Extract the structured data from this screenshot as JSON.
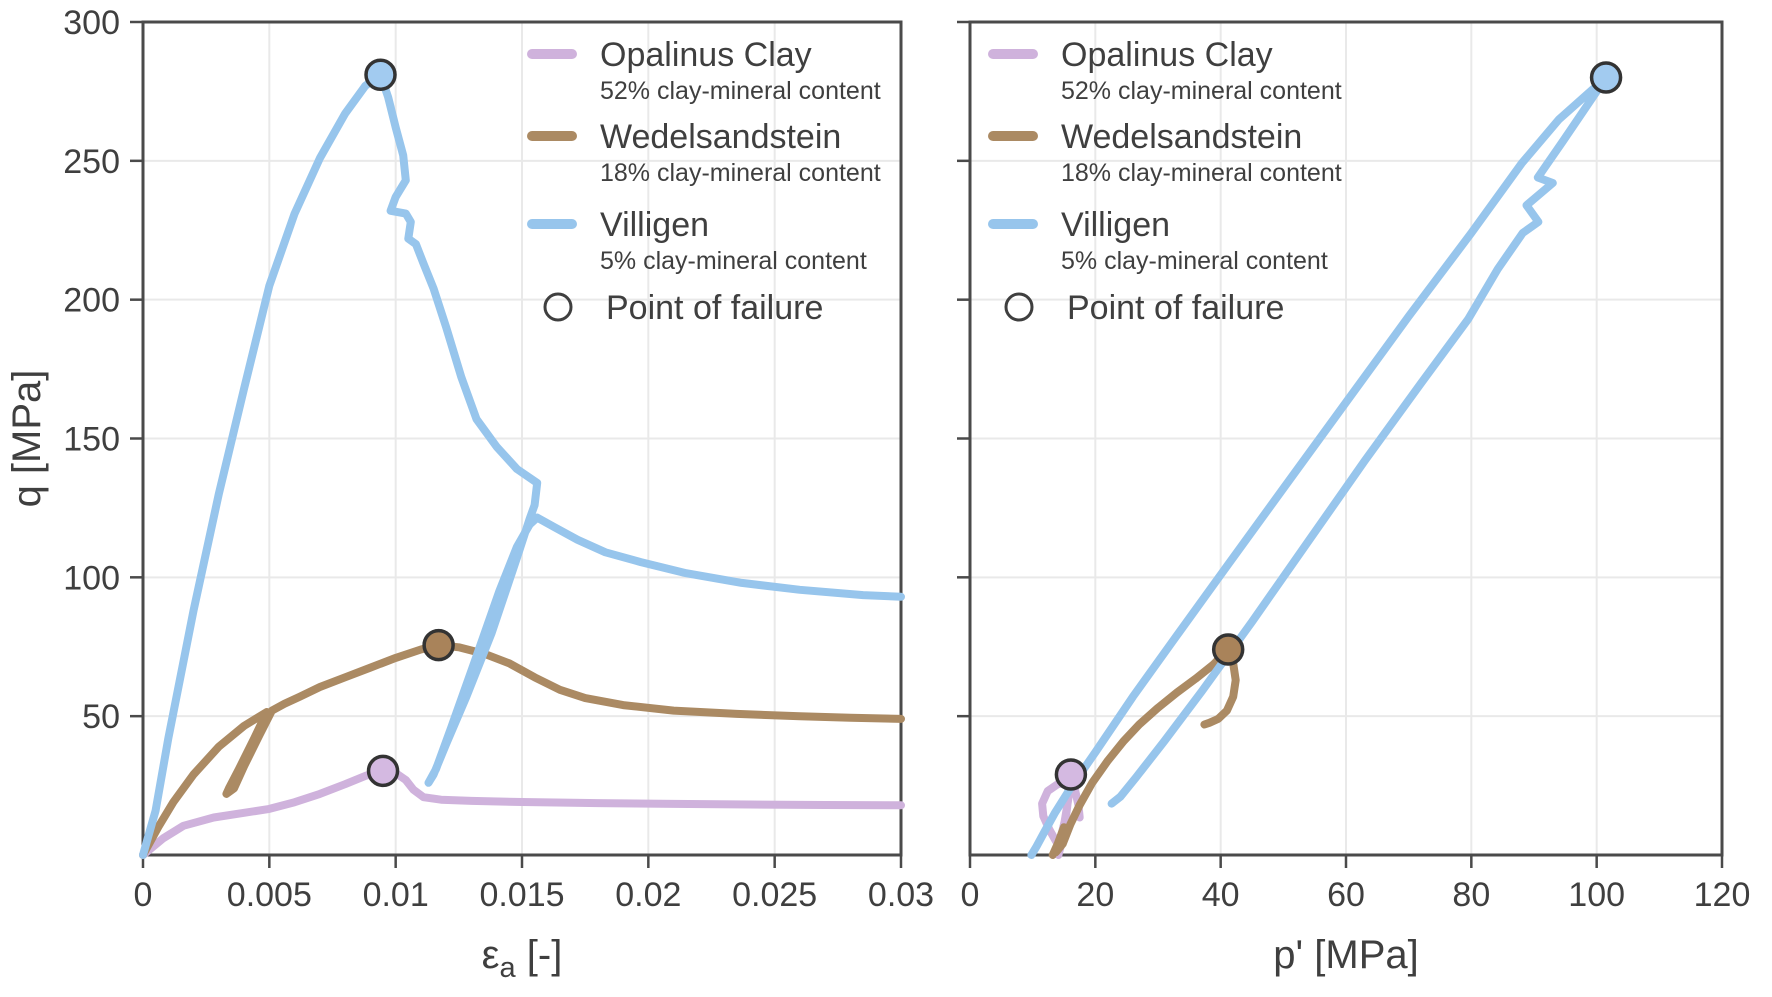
{
  "figure": {
    "background": "#ffffff",
    "text_color": "#3f3f3f",
    "spine_color": "#4a4a4a",
    "grid_color": "#e9e9e9",
    "tick_color": "#4a4a4a",
    "failure_marker_edge": "#333333",
    "legend_marker_edge": "#3f3f3f"
  },
  "legend": {
    "entries": [
      {
        "key": "opalinus",
        "label": "Opalinus Clay",
        "sublabel": "52% clay-mineral content",
        "color": "#cfb2dc"
      },
      {
        "key": "wedelsandstein",
        "label": "Wedelsandstein",
        "sublabel": "18% clay-mineral content",
        "color": "#ab8a63"
      },
      {
        "key": "villigen",
        "label": "Villigen",
        "sublabel": "5% clay-mineral content",
        "color": "#97c5ec"
      }
    ],
    "failure_label": "Point of failure"
  },
  "chart_data": [
    {
      "id": "stress-strain",
      "type": "line",
      "xlabel_parts": [
        {
          "text": "ε"
        },
        {
          "text": "a",
          "sub": true
        },
        {
          "text": " [-]"
        }
      ],
      "ylabel": "q [MPa]",
      "xlim": [
        0,
        0.03
      ],
      "ylim": [
        0,
        300
      ],
      "xticks": [
        0,
        0.005,
        0.01,
        0.015,
        0.02,
        0.025,
        0.03
      ],
      "xtick_labels": [
        "0",
        "0.005",
        "0.01",
        "0.015",
        "0.02",
        "0.025",
        "0.03"
      ],
      "yticks": [
        50,
        100,
        150,
        200,
        250,
        300
      ],
      "ytick_labels": [
        "50",
        "100",
        "150",
        "200",
        "250",
        "300"
      ],
      "grid": true,
      "series": [
        {
          "key": "opalinus",
          "name": "Opalinus Clay",
          "color": "#cfb2dc",
          "marker_fill": "#d4b9e1",
          "points": [
            [
              0,
              0
            ],
            [
              0.0008,
              6
            ],
            [
              0.0016,
              10.5
            ],
            [
              0.0028,
              13.5
            ],
            [
              0.004,
              15.2
            ],
            [
              0.005,
              16.6
            ],
            [
              0.006,
              19
            ],
            [
              0.007,
              22
            ],
            [
              0.008,
              25.5
            ],
            [
              0.0088,
              28.5
            ],
            [
              0.0095,
              30.3
            ],
            [
              0.01,
              29.5
            ],
            [
              0.0104,
              27
            ],
            [
              0.0107,
              23.5
            ],
            [
              0.0111,
              20.8
            ],
            [
              0.0118,
              19.9
            ],
            [
              0.013,
              19.5
            ],
            [
              0.015,
              19.1
            ],
            [
              0.018,
              18.7
            ],
            [
              0.021,
              18.4
            ],
            [
              0.024,
              18.2
            ],
            [
              0.027,
              18
            ],
            [
              0.03,
              17.9
            ]
          ]
        },
        {
          "key": "wedelsandstein",
          "name": "Wedelsandstein",
          "color": "#ab8a63",
          "marker_fill": "#a9835a",
          "points": [
            [
              0,
              0
            ],
            [
              0.0006,
              10
            ],
            [
              0.0012,
              19
            ],
            [
              0.002,
              29
            ],
            [
              0.003,
              39
            ],
            [
              0.004,
              46.5
            ],
            [
              0.0049,
              51.5
            ],
            [
              0.0044,
              42
            ],
            [
              0.0038,
              31
            ],
            [
              0.0034,
              24
            ],
            [
              0.0033,
              22
            ],
            [
              0.0036,
              24
            ],
            [
              0.004,
              32
            ],
            [
              0.0046,
              43
            ],
            [
              0.0051,
              52
            ],
            [
              0.0056,
              54.5
            ],
            [
              0.0062,
              57
            ],
            [
              0.007,
              60.5
            ],
            [
              0.008,
              64
            ],
            [
              0.009,
              67.5
            ],
            [
              0.01,
              71
            ],
            [
              0.011,
              74
            ],
            [
              0.0117,
              75.6
            ],
            [
              0.0125,
              74.8
            ],
            [
              0.0135,
              72.5
            ],
            [
              0.0145,
              69
            ],
            [
              0.0155,
              64
            ],
            [
              0.0165,
              59.5
            ],
            [
              0.0175,
              56.5
            ],
            [
              0.019,
              54
            ],
            [
              0.021,
              52
            ],
            [
              0.0235,
              50.8
            ],
            [
              0.026,
              50
            ],
            [
              0.028,
              49.4
            ],
            [
              0.03,
              49
            ]
          ]
        },
        {
          "key": "villigen",
          "name": "Villigen",
          "color": "#97c5ec",
          "marker_fill": "#a2cbf0",
          "points": [
            [
              0,
              0
            ],
            [
              0.0005,
              16
            ],
            [
              0.001,
              42
            ],
            [
              0.002,
              88
            ],
            [
              0.003,
              130
            ],
            [
              0.004,
              168
            ],
            [
              0.005,
              205
            ],
            [
              0.006,
              231
            ],
            [
              0.007,
              251
            ],
            [
              0.008,
              267
            ],
            [
              0.0088,
              277
            ],
            [
              0.0094,
              281
            ],
            [
              0.0097,
              273
            ],
            [
              0.01,
              262
            ],
            [
              0.0103,
              252
            ],
            [
              0.0104,
              243
            ],
            [
              0.01,
              237
            ],
            [
              0.0098,
              232
            ],
            [
              0.0104,
              231
            ],
            [
              0.0106,
              228
            ],
            [
              0.0105,
              222
            ],
            [
              0.0108,
              220
            ],
            [
              0.0111,
              213
            ],
            [
              0.0115,
              204
            ],
            [
              0.012,
              190
            ],
            [
              0.0126,
              172
            ],
            [
              0.0132,
              157
            ],
            [
              0.014,
              147
            ],
            [
              0.0148,
              139
            ],
            [
              0.0156,
              134
            ],
            [
              0.0155,
              126
            ],
            [
              0.0153,
              121
            ],
            [
              0.0148,
              107
            ],
            [
              0.0138,
              80
            ],
            [
              0.0128,
              57
            ],
            [
              0.012,
              40
            ],
            [
              0.0115,
              29
            ],
            [
              0.0113,
              26
            ],
            [
              0.0116,
              31
            ],
            [
              0.0122,
              46
            ],
            [
              0.0131,
              69
            ],
            [
              0.0141,
              95
            ],
            [
              0.0148,
              111
            ],
            [
              0.0153,
              119
            ],
            [
              0.0156,
              121.5
            ],
            [
              0.0163,
              118
            ],
            [
              0.0172,
              113.5
            ],
            [
              0.0183,
              109
            ],
            [
              0.0197,
              105.5
            ],
            [
              0.0215,
              101.5
            ],
            [
              0.0237,
              98
            ],
            [
              0.026,
              95.5
            ],
            [
              0.0285,
              93.6
            ],
            [
              0.03,
              93
            ]
          ]
        }
      ],
      "failure_points": [
        {
          "series": "opalinus",
          "x": 0.0095,
          "y": 30.3
        },
        {
          "series": "wedelsandstein",
          "x": 0.0117,
          "y": 75.6
        },
        {
          "series": "villigen",
          "x": 0.0094,
          "y": 281
        }
      ]
    },
    {
      "id": "stress-path",
      "type": "line",
      "xlabel_parts": [
        {
          "text": "p' [MPa]"
        }
      ],
      "ylabel": "",
      "xlim": [
        0,
        120
      ],
      "ylim": [
        0,
        300
      ],
      "xticks": [
        0,
        20,
        40,
        60,
        80,
        100,
        120
      ],
      "xtick_labels": [
        "0",
        "20",
        "40",
        "60",
        "80",
        "100",
        "120"
      ],
      "yticks": [
        50,
        100,
        150,
        200,
        250,
        300
      ],
      "ytick_labels": [
        "",
        "",
        "",
        "",
        "",
        ""
      ],
      "grid": true,
      "series": [
        {
          "key": "opalinus",
          "name": "Opalinus Clay",
          "color": "#cfb2dc",
          "marker_fill": "#d4b9e1",
          "points": [
            [
              14.1,
              0
            ],
            [
              14.7,
              5
            ],
            [
              15.1,
              10
            ],
            [
              15.5,
              17
            ],
            [
              15.8,
              23
            ],
            [
              15.4,
              26
            ],
            [
              14,
              25.5
            ],
            [
              12.4,
              23
            ],
            [
              11.5,
              18.5
            ],
            [
              11.7,
              14
            ],
            [
              12.7,
              9
            ],
            [
              13.7,
              5
            ],
            [
              14.5,
              6.5
            ],
            [
              15.1,
              12
            ],
            [
              15.6,
              19
            ],
            [
              16,
              25
            ],
            [
              16.1,
              29
            ],
            [
              16.7,
              24
            ],
            [
              17.3,
              18
            ],
            [
              17.5,
              13.5
            ]
          ]
        },
        {
          "key": "wedelsandstein",
          "name": "Wedelsandstein",
          "color": "#ab8a63",
          "marker_fill": "#a9835a",
          "points": [
            [
              13.2,
              0
            ],
            [
              14,
              4
            ],
            [
              15,
              10
            ],
            [
              14.3,
              5
            ],
            [
              13.7,
              1
            ],
            [
              14.8,
              4
            ],
            [
              16,
              11
            ],
            [
              17.5,
              18
            ],
            [
              19.5,
              26
            ],
            [
              22,
              34
            ],
            [
              24.5,
              41
            ],
            [
              27,
              47
            ],
            [
              30,
              53
            ],
            [
              33,
              58.5
            ],
            [
              36,
              63.5
            ],
            [
              38.8,
              68.5
            ],
            [
              41.2,
              74
            ],
            [
              42,
              69
            ],
            [
              42.4,
              63
            ],
            [
              42,
              57
            ],
            [
              41,
              52
            ],
            [
              39.6,
              49
            ],
            [
              38.2,
              47.6
            ],
            [
              37.4,
              47
            ]
          ]
        },
        {
          "key": "villigen",
          "name": "Villigen",
          "color": "#97c5ec",
          "marker_fill": "#a2cbf0",
          "points": [
            [
              9.8,
              0
            ],
            [
              10.6,
              3
            ],
            [
              11.8,
              8
            ],
            [
              13.5,
              15
            ],
            [
              16,
              24
            ],
            [
              20,
              37
            ],
            [
              26,
              57
            ],
            [
              33,
              79
            ],
            [
              41,
              104
            ],
            [
              50,
              132
            ],
            [
              60,
              163
            ],
            [
              70,
              194
            ],
            [
              80,
              224
            ],
            [
              88,
              249
            ],
            [
              94,
              265
            ],
            [
              98,
              273
            ],
            [
              101.5,
              280
            ],
            [
              100,
              275
            ],
            [
              94.6,
              257
            ],
            [
              90.6,
              244
            ],
            [
              93,
              242
            ],
            [
              88.8,
              234
            ],
            [
              90.7,
              228
            ],
            [
              88.2,
              224
            ],
            [
              84.2,
              211
            ],
            [
              79.5,
              193
            ],
            [
              72,
              170
            ],
            [
              63,
              142
            ],
            [
              54,
              113
            ],
            [
              45,
              84
            ],
            [
              37,
              59
            ],
            [
              31,
              41
            ],
            [
              26.5,
              28
            ],
            [
              24,
              21
            ],
            [
              22.6,
              18.5
            ]
          ]
        }
      ],
      "failure_points": [
        {
          "series": "opalinus",
          "x": 16.1,
          "y": 29
        },
        {
          "series": "wedelsandstein",
          "x": 41.2,
          "y": 74
        },
        {
          "series": "villigen",
          "x": 101.5,
          "y": 280
        }
      ]
    }
  ]
}
